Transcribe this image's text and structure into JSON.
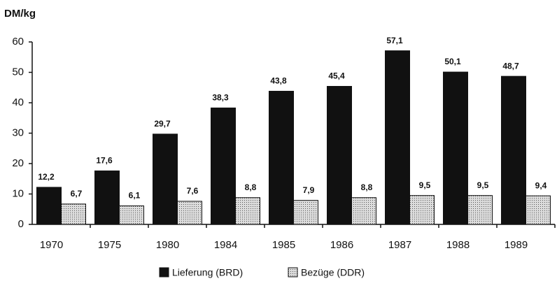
{
  "chart_data": {
    "type": "bar",
    "y_label": "DM/kg",
    "categories": [
      "1970",
      "1975",
      "1980",
      "1984",
      "1985",
      "1986",
      "1987",
      "1988",
      "1989"
    ],
    "series": [
      {
        "name": "Lieferung (BRD)",
        "color": "#111111",
        "values": [
          12.2,
          17.6,
          29.7,
          38.3,
          43.8,
          45.4,
          57.1,
          50.1,
          48.7
        ],
        "value_labels": [
          "12,2",
          "17,6",
          "29,7",
          "38,3",
          "43,8",
          "45,4",
          "57,1",
          "50,1",
          "48,7"
        ]
      },
      {
        "name": "Bezüge (DDR)",
        "color": "#dcdcdc",
        "pattern": "dotted",
        "values": [
          6.7,
          6.1,
          7.6,
          8.8,
          7.9,
          8.8,
          9.5,
          9.5,
          9.4
        ],
        "value_labels": [
          "6,7",
          "6,1",
          "7,6",
          "8,8",
          "7,9",
          "8,8",
          "9,5",
          "9,5",
          "9,4"
        ]
      }
    ],
    "ylim": [
      0,
      60
    ],
    "yticks": [
      0,
      10,
      20,
      30,
      40,
      50,
      60
    ],
    "grid": false
  }
}
